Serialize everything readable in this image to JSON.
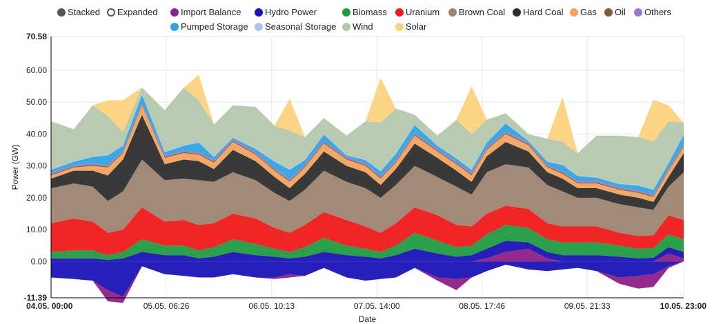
{
  "legend": {
    "modes": [
      {
        "label": "Stacked",
        "color": "#555555",
        "filled": true
      },
      {
        "label": "Expanded",
        "color": "#555555",
        "filled": false
      }
    ],
    "series": [
      {
        "label": "Import Balance",
        "color": "#8e1f86"
      },
      {
        "label": "Hydro Power",
        "color": "#1a13b5"
      },
      {
        "label": "Biomass",
        "color": "#1e9b3f"
      },
      {
        "label": "Uranium",
        "color": "#f0181a"
      },
      {
        "label": "Brown Coal",
        "color": "#9e8470"
      },
      {
        "label": "Hard Coal",
        "color": "#2e2e2e"
      },
      {
        "label": "Gas",
        "color": "#f4a25d"
      },
      {
        "label": "Oil",
        "color": "#7a5c3b"
      },
      {
        "label": "Others",
        "color": "#9a78c4"
      },
      {
        "label": "Pumped Storage",
        "color": "#2da4e0"
      },
      {
        "label": "Seasonal Storage",
        "color": "#a9c4f0"
      },
      {
        "label": "Wind",
        "color": "#b4c8ac"
      },
      {
        "label": "Solar",
        "color": "#fdd27c"
      }
    ]
  },
  "chart_data": {
    "type": "area",
    "stacked": true,
    "xlabel": "Date",
    "ylabel": "Power (GW)",
    "ylim": [
      -11.39,
      70.58
    ],
    "yticks": [
      "70.58",
      "60.00",
      "50.00",
      "40.00",
      "30.00",
      "20.00",
      "10.00",
      "0.00",
      "-11.39"
    ],
    "ytick_values": [
      70.58,
      60,
      50,
      40,
      30,
      20,
      10,
      0,
      -11.39
    ],
    "xlim_hours": [
      0,
      167
    ],
    "xticks": [
      {
        "label": "04.05. 00:00",
        "hour": 0,
        "bold": true
      },
      {
        "label": "05.05. 06:26",
        "hour": 30.43
      },
      {
        "label": "06.05. 10:13",
        "hour": 58.22
      },
      {
        "label": "07.05. 14:00",
        "hour": 86
      },
      {
        "label": "08.05. 17:46",
        "hour": 113.77
      },
      {
        "label": "09.05. 21:33",
        "hour": 141.55
      },
      {
        "label": "10.05. 23:00",
        "hour": 167,
        "bold": true
      }
    ],
    "grid": true,
    "legend_position": "top",
    "x_hours": [
      0,
      6,
      11,
      15,
      19,
      24,
      30,
      35,
      39,
      43,
      48,
      54,
      59,
      63,
      67,
      72,
      78,
      83,
      87,
      91,
      96,
      102,
      107,
      111,
      115,
      120,
      126,
      131,
      135,
      139,
      144,
      150,
      155,
      159,
      163,
      167
    ],
    "negative_series": [
      {
        "name": "Hydro Power",
        "values": [
          -5,
          -5.5,
          -6,
          -9,
          -11,
          -1.5,
          -4,
          -4.5,
          -5,
          -5,
          -4,
          -5,
          -5,
          -4,
          -4.5,
          -2,
          -5,
          -6,
          -5.5,
          -5,
          -2,
          -5,
          -5.5,
          -5,
          -3,
          -1,
          -2.5,
          -3,
          -2.5,
          -2,
          -3,
          -5,
          -4.5,
          -4,
          -1.5,
          0
        ]
      },
      {
        "name": "Import Balance",
        "values": [
          0,
          0,
          0,
          -3.5,
          -2,
          0,
          0,
          0,
          0,
          0,
          0,
          0,
          -0.5,
          -1,
          0,
          0,
          0,
          0,
          0,
          0,
          0,
          -1,
          -3.5,
          0,
          0,
          0,
          0,
          0,
          0,
          0,
          0,
          -2,
          -4,
          -4,
          -0.5,
          0
        ]
      }
    ],
    "positive_series": [
      {
        "name": "Import Balance",
        "values": [
          0,
          0,
          0,
          0,
          0,
          0,
          0,
          0,
          0,
          0,
          0,
          0,
          0,
          0,
          0,
          0,
          0,
          0,
          0,
          0,
          0,
          0,
          0,
          0,
          1,
          3,
          4,
          1,
          0,
          0,
          0,
          0,
          0,
          0,
          2.5,
          1
        ]
      },
      {
        "name": "Hydro Power",
        "values": [
          1,
          1,
          1,
          0.5,
          1,
          3,
          2,
          2,
          1,
          1.5,
          3,
          2,
          1.5,
          1,
          1.5,
          3,
          2,
          1.5,
          1,
          2,
          4,
          2.5,
          1.5,
          2,
          3,
          3.5,
          2,
          2,
          2,
          2,
          2,
          1.5,
          1,
          1.2,
          2,
          2
        ]
      },
      {
        "name": "Biomass",
        "values": [
          2,
          2.5,
          2.5,
          1.5,
          2,
          4,
          3,
          3,
          2.5,
          3,
          4,
          3.5,
          2.5,
          2,
          3,
          4.5,
          3,
          2.5,
          2,
          3,
          5,
          4,
          3,
          3,
          4.5,
          5,
          4.5,
          4,
          4,
          4,
          4,
          3.5,
          3,
          3,
          4,
          4
        ]
      },
      {
        "name": "Uranium",
        "values": [
          9,
          10,
          9,
          7,
          7,
          10,
          7.5,
          8,
          8,
          7.5,
          8,
          8,
          6.5,
          6,
          7,
          8,
          8,
          7,
          6,
          7,
          8,
          8,
          7,
          6,
          6.5,
          6,
          6,
          5,
          5,
          5,
          5,
          4,
          4,
          4,
          6,
          6
        ]
      },
      {
        "name": "Brown Coal",
        "values": [
          11,
          11,
          11,
          10,
          12,
          15,
          13,
          13,
          14,
          13,
          13,
          12,
          11,
          10,
          11,
          13,
          12,
          12,
          11,
          12,
          13,
          12,
          12,
          10,
          13,
          13,
          13,
          12,
          11,
          9,
          9,
          9,
          9,
          8,
          9,
          15
        ]
      },
      {
        "name": "Hard Coal",
        "values": [
          3,
          4,
          5,
          8,
          10,
          14,
          5,
          6,
          6,
          4,
          7,
          6,
          5,
          4,
          5,
          6,
          5,
          5,
          4,
          5,
          7,
          6,
          5,
          4,
          5,
          7,
          5,
          4,
          4,
          3,
          3,
          3,
          3,
          2.5,
          3,
          6
        ]
      },
      {
        "name": "Gas",
        "values": [
          1,
          1,
          1.5,
          2.5,
          2,
          3,
          2,
          2,
          2,
          2,
          2.5,
          2,
          2,
          2,
          2,
          2.5,
          2,
          2,
          2,
          2,
          2.5,
          2,
          2,
          2,
          2,
          2.5,
          2,
          1.5,
          1.5,
          1.5,
          1.5,
          1.5,
          1.5,
          1.5,
          2,
          2
        ]
      },
      {
        "name": "Oil",
        "values": [
          0.3,
          0.3,
          0.3,
          0.3,
          0.3,
          0.3,
          0.3,
          0.3,
          0.3,
          0.3,
          0.3,
          0.3,
          0.3,
          0.3,
          0.3,
          0.3,
          0.3,
          0.3,
          0.3,
          0.3,
          0.3,
          0.3,
          0.3,
          0.3,
          0.3,
          0.3,
          0.3,
          0.3,
          0.3,
          0.3,
          0.3,
          0.3,
          0.3,
          0.3,
          0.3,
          0.3
        ]
      },
      {
        "name": "Others",
        "values": [
          0.5,
          0.5,
          0.5,
          0.5,
          0.5,
          0.5,
          0.5,
          0.5,
          0.5,
          0.5,
          0.5,
          0.5,
          0.5,
          0.5,
          0.5,
          0.5,
          0.5,
          0.5,
          0.5,
          0.5,
          0.5,
          0.5,
          0.5,
          0.5,
          0.5,
          0.5,
          0.5,
          0.5,
          0.5,
          0.5,
          0.5,
          0.5,
          0.5,
          0.5,
          0.5,
          0.5
        ]
      },
      {
        "name": "Pumped Storage",
        "values": [
          1,
          1,
          2,
          3,
          1.5,
          2.5,
          1,
          1.5,
          3,
          1,
          0.5,
          1,
          2,
          3,
          1.5,
          2,
          0.5,
          1,
          1.5,
          2,
          2.5,
          1,
          1,
          1,
          1.5,
          2.5,
          0.5,
          1,
          2,
          1.5,
          1,
          1,
          1.5,
          1.5,
          1.5,
          3
        ]
      },
      {
        "name": "Seasonal Storage",
        "values": [
          0.2,
          0.2,
          0.2,
          0.3,
          0.3,
          0.3,
          0.2,
          0.2,
          0.3,
          0.2,
          0.2,
          0.2,
          0.3,
          0.3,
          0.2,
          0.2,
          0.2,
          0.2,
          0.3,
          0.2,
          0.2,
          0.2,
          0.2,
          0.2,
          0.2,
          0.2,
          0.2,
          0.2,
          0.3,
          0.2,
          0.2,
          0.2,
          0.2,
          0.2,
          0.2,
          0.2
        ]
      },
      {
        "name": "Wind",
        "values": [
          15,
          10,
          16,
          12,
          4,
          2,
          13,
          18,
          13,
          10,
          10,
          13,
          11,
          12,
          7,
          5,
          6,
          12,
          15,
          14,
          3,
          3,
          12,
          11,
          7,
          3,
          2,
          7,
          7,
          7,
          13,
          15,
          15,
          15,
          13,
          3.5
        ]
      },
      {
        "name": "Solar",
        "values": [
          0,
          0,
          0,
          5,
          10,
          0,
          0,
          0,
          8,
          0,
          0,
          0,
          0,
          10,
          0,
          0,
          0,
          0,
          14,
          0,
          0,
          0,
          0,
          15,
          0,
          0,
          0,
          0,
          14,
          0,
          0,
          0,
          0,
          13,
          5,
          0
        ]
      }
    ]
  }
}
